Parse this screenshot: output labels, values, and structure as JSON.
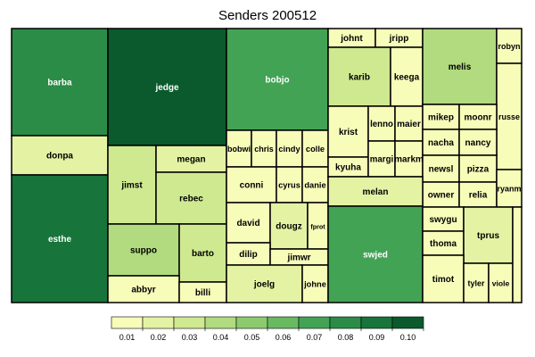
{
  "chart_data": {
    "type": "treemap",
    "title": "Senders 200512",
    "color_scale": {
      "ticks": [
        "0.01",
        "0.02",
        "0.03",
        "0.04",
        "0.05",
        "0.06",
        "0.07",
        "0.08",
        "0.09",
        "0.10"
      ],
      "colors": [
        "#f7fcb9",
        "#e4f3a3",
        "#cfe990",
        "#b1db7e",
        "#8ccb6d",
        "#68ba61",
        "#43a355",
        "#2b8c47",
        "#17743a",
        "#0a5a2e"
      ]
    },
    "nodes": [
      {
        "name": "barba",
        "value": 0.08
      },
      {
        "name": "donpa",
        "value": 0.02
      },
      {
        "name": "esthe",
        "value": 0.085
      },
      {
        "name": "jedge",
        "value": 0.1
      },
      {
        "name": "jimst",
        "value": 0.03
      },
      {
        "name": "megan",
        "value": 0.015
      },
      {
        "name": "rebec",
        "value": 0.03
      },
      {
        "name": "suppo",
        "value": 0.035
      },
      {
        "name": "barto",
        "value": 0.025
      },
      {
        "name": "abbyr",
        "value": 0.01
      },
      {
        "name": "billi",
        "value": 0.01
      },
      {
        "name": "bobjo",
        "value": 0.07
      },
      {
        "name": "bobwi",
        "value": 0.01
      },
      {
        "name": "chris",
        "value": 0.01
      },
      {
        "name": "cindy",
        "value": 0.01
      },
      {
        "name": "colle",
        "value": 0.01
      },
      {
        "name": "conni",
        "value": 0.012
      },
      {
        "name": "cyrus",
        "value": 0.008
      },
      {
        "name": "danie",
        "value": 0.008
      },
      {
        "name": "david",
        "value": 0.012
      },
      {
        "name": "dougz",
        "value": 0.015
      },
      {
        "name": "fprot",
        "value": 0.008
      },
      {
        "name": "dilip",
        "value": 0.01
      },
      {
        "name": "jimwr",
        "value": 0.01
      },
      {
        "name": "joelg",
        "value": 0.015
      },
      {
        "name": "johne",
        "value": 0.008
      },
      {
        "name": "johnt",
        "value": 0.01
      },
      {
        "name": "jripp",
        "value": 0.01
      },
      {
        "name": "karib",
        "value": 0.025
      },
      {
        "name": "keega",
        "value": 0.01
      },
      {
        "name": "melis",
        "value": 0.04
      },
      {
        "name": "robyn",
        "value": 0.008
      },
      {
        "name": "russe",
        "value": 0.01
      },
      {
        "name": "krist",
        "value": 0.012
      },
      {
        "name": "lenno",
        "value": 0.01
      },
      {
        "name": "maier",
        "value": 0.01
      },
      {
        "name": "kyuha",
        "value": 0.01
      },
      {
        "name": "margi",
        "value": 0.01
      },
      {
        "name": "markm",
        "value": 0.008
      },
      {
        "name": "mikep",
        "value": 0.01
      },
      {
        "name": "moonr",
        "value": 0.01
      },
      {
        "name": "nacha",
        "value": 0.01
      },
      {
        "name": "nancy",
        "value": 0.01
      },
      {
        "name": "newsl",
        "value": 0.01
      },
      {
        "name": "pizza",
        "value": 0.01
      },
      {
        "name": "owner",
        "value": 0.01
      },
      {
        "name": "relia",
        "value": 0.01
      },
      {
        "name": "ryanm",
        "value": 0.008
      },
      {
        "name": "melan",
        "value": 0.018
      },
      {
        "name": "swjed",
        "value": 0.07
      },
      {
        "name": "swygu",
        "value": 0.01
      },
      {
        "name": "thoma",
        "value": 0.012
      },
      {
        "name": "tprus",
        "value": 0.015
      },
      {
        "name": "timot",
        "value": 0.012
      },
      {
        "name": "tyler",
        "value": 0.01
      },
      {
        "name": "viole",
        "value": 0.01
      },
      {
        "name": "",
        "value": 0.008
      }
    ]
  }
}
